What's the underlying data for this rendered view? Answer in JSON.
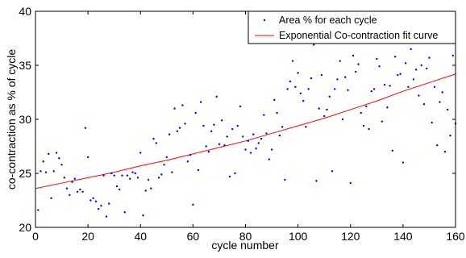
{
  "chart_data": {
    "type": "scatter",
    "xlabel": "cycle number",
    "ylabel": "co-contraction as % of cycle",
    "xlim": [
      0,
      160
    ],
    "ylim": [
      20,
      40
    ],
    "x_ticks": [
      0,
      20,
      40,
      60,
      80,
      100,
      120,
      140,
      160
    ],
    "y_ticks": [
      20,
      25,
      30,
      35,
      40
    ],
    "legend_position": "top-right",
    "grid": false,
    "colors": {
      "points": "#0000ff",
      "fit": "#ff0000",
      "axes": "#000000"
    },
    "series": [
      {
        "name": "Area % for each cycle",
        "kind": "points",
        "x": [
          1,
          2,
          3,
          4,
          5,
          6,
          7,
          8,
          9,
          10,
          11,
          12,
          13,
          14,
          15,
          16,
          17,
          18,
          19,
          20,
          21,
          22,
          23,
          24,
          25,
          26,
          27,
          28,
          29,
          30,
          31,
          32,
          33,
          34,
          35,
          36,
          37,
          38,
          39,
          40,
          41,
          42,
          43,
          44,
          45,
          46,
          47,
          48,
          49,
          50,
          51,
          52,
          53,
          54,
          55,
          56,
          57,
          58,
          59,
          60,
          61,
          62,
          63,
          64,
          65,
          66,
          67,
          68,
          69,
          70,
          71,
          72,
          73,
          74,
          75,
          76,
          77,
          78,
          79,
          80,
          81,
          82,
          83,
          84,
          85,
          86,
          87,
          88,
          89,
          90,
          91,
          92,
          93,
          94,
          95,
          96,
          97,
          98,
          99,
          100,
          101,
          102,
          103,
          104,
          105,
          106,
          107,
          108,
          109,
          110,
          111,
          112,
          113,
          114,
          115,
          116,
          117,
          118,
          119,
          120,
          121,
          122,
          123,
          124,
          125,
          126,
          127,
          128,
          129,
          130,
          131,
          132,
          133,
          134,
          135,
          136,
          137,
          138,
          139,
          140,
          141,
          142,
          143,
          144,
          145,
          146,
          147,
          148,
          149,
          150,
          151,
          152,
          153,
          154,
          155,
          156,
          157,
          158,
          159,
          160
        ],
        "y": [
          21.6,
          25.2,
          26.1,
          25.1,
          26.8,
          22.7,
          25.2,
          26.9,
          26.4,
          25.8,
          24.6,
          23.6,
          23.0,
          24.2,
          24.5,
          23.3,
          23.5,
          23.3,
          29.2,
          26.5,
          22.5,
          22.7,
          22.4,
          21.7,
          22.0,
          24.8,
          21.0,
          22.2,
          25.0,
          24.8,
          23.8,
          23.5,
          24.8,
          21.4,
          24.8,
          24.5,
          25.1,
          25.0,
          24.6,
          26.9,
          21.1,
          23.4,
          24.4,
          23.6,
          28.2,
          27.8,
          24.6,
          24.9,
          25.8,
          26.5,
          28.6,
          25.1,
          31.0,
          28.9,
          29.2,
          31.3,
          29.6,
          26.1,
          26.7,
          22.1,
          30.6,
          25.3,
          31.6,
          29.4,
          27.5,
          27.0,
          28.9,
          29.5,
          32.1,
          27.7,
          29.9,
          27.6,
          28.4,
          24.7,
          29.1,
          25.0,
          29.4,
          31.2,
          28.4,
          27.2,
          28.0,
          26.9,
          28.6,
          27.3,
          27.8,
          28.2,
          30.4,
          28.7,
          26.3,
          27.2,
          31.8,
          30.6,
          28.5,
          29.3,
          24.4,
          32.8,
          33.5,
          35.4,
          33.0,
          34.3,
          32.4,
          31.7,
          29.3,
          32.8,
          33.8,
          36.9,
          24.3,
          31.0,
          34.1,
          30.3,
          30.9,
          32.1,
          25.2,
          32.8,
          33.7,
          35.4,
          30.0,
          33.9,
          32.7,
          24.1,
          35.9,
          34.4,
          35.1,
          30.6,
          29.4,
          31.2,
          29.1,
          32.6,
          32.8,
          35.6,
          34.9,
          29.8,
          33.2,
          31.1,
          33.1,
          27.1,
          35.8,
          34.1,
          34.2,
          26.0,
          35.2,
          33.0,
          36.5,
          33.7,
          34.6,
          32.2,
          35.0,
          31.4,
          34.7,
          35.7,
          29.7,
          33.0,
          27.6,
          31.6,
          32.5,
          27.0,
          30.9,
          28.5,
          35.9,
          29.6
        ]
      },
      {
        "name": "Exponential Co-contraction fit curve",
        "kind": "line",
        "x": [
          0,
          10,
          20,
          30,
          40,
          50,
          60,
          70,
          80,
          90,
          100,
          110,
          120,
          130,
          140,
          150,
          160
        ],
        "y": [
          23.6,
          24.1,
          24.6,
          25.1,
          25.7,
          26.2,
          26.8,
          27.4,
          28.0,
          28.7,
          29.4,
          30.1,
          30.9,
          31.7,
          32.6,
          33.4,
          34.2
        ]
      }
    ]
  }
}
